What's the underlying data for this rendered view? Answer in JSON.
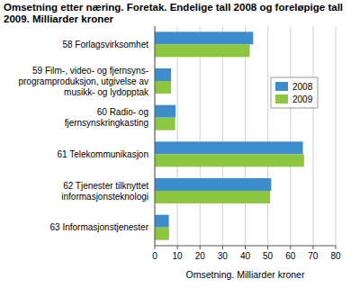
{
  "chart_data": {
    "type": "bar",
    "orientation": "horizontal",
    "title": "Omsetning etter næring. Foretak. Endelige tall 2008 og foreløpige tall 2009. Milliarder kroner",
    "xlabel": "Omsetning. Milliarder kroner",
    "categories": [
      "58 Forlagsvirksomhet",
      "59 Film-, video- og fjernsyns-programproduksjon, utgivelse av musikk- og lydopptak",
      "60 Radio- og fjernsynskringkasting",
      "61 Telekommunikasjon",
      "62 Tjenester tilknyttet informasjonsteknologi",
      "63 Informasjonstjenester"
    ],
    "series": [
      {
        "name": "2008",
        "color": "#3d8ccc",
        "values": [
          43.5,
          7.2,
          9.2,
          65.5,
          51.5,
          6.2
        ]
      },
      {
        "name": "2009",
        "color": "#8dc63f",
        "values": [
          42,
          7.2,
          9,
          66,
          51,
          6.3
        ]
      }
    ],
    "xlim": [
      0,
      80
    ],
    "xticks": [
      0,
      10,
      20,
      30,
      40,
      50,
      60,
      70,
      80
    ],
    "grid": true,
    "legend": "upper right"
  }
}
